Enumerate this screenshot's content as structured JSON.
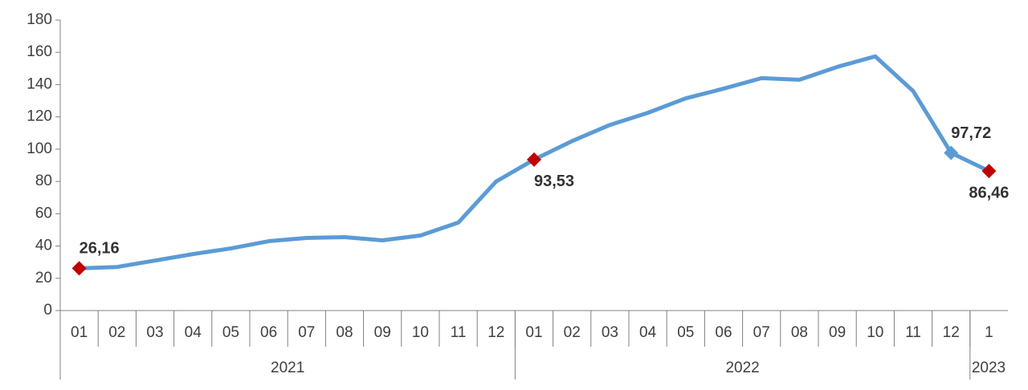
{
  "chart_data": {
    "type": "line",
    "categories": [
      "01",
      "02",
      "03",
      "04",
      "05",
      "06",
      "07",
      "08",
      "09",
      "10",
      "11",
      "12",
      "01",
      "02",
      "03",
      "04",
      "05",
      "06",
      "07",
      "08",
      "09",
      "10",
      "11",
      "12",
      "1"
    ],
    "groups": [
      {
        "name": "2021",
        "count": 12
      },
      {
        "name": "2022",
        "count": 12
      },
      {
        "name": "2023",
        "count": 1
      }
    ],
    "series": [
      {
        "color": "#5b9bd5",
        "values": [
          26.16,
          27,
          31,
          35,
          38.5,
          43,
          45,
          45.5,
          43.5,
          46.5,
          54.5,
          80,
          93.53,
          105,
          115,
          122.5,
          131.5,
          137.5,
          144,
          143,
          151,
          157.5,
          136,
          97.72,
          86.46
        ],
        "value_labels": [
          "26,16",
          null,
          null,
          null,
          null,
          null,
          null,
          null,
          null,
          null,
          null,
          null,
          "93,53",
          null,
          null,
          null,
          null,
          null,
          null,
          null,
          null,
          null,
          null,
          "97,72",
          "86,46"
        ],
        "marker_colors": [
          "#c00000",
          null,
          null,
          null,
          null,
          null,
          null,
          null,
          null,
          null,
          null,
          null,
          "#c00000",
          null,
          null,
          null,
          null,
          null,
          null,
          null,
          null,
          null,
          null,
          "#5b9bd5",
          "#c00000"
        ]
      }
    ],
    "ylim": [
      0,
      180
    ],
    "yticks": [
      0,
      20,
      40,
      60,
      80,
      100,
      120,
      140,
      160,
      180
    ]
  }
}
